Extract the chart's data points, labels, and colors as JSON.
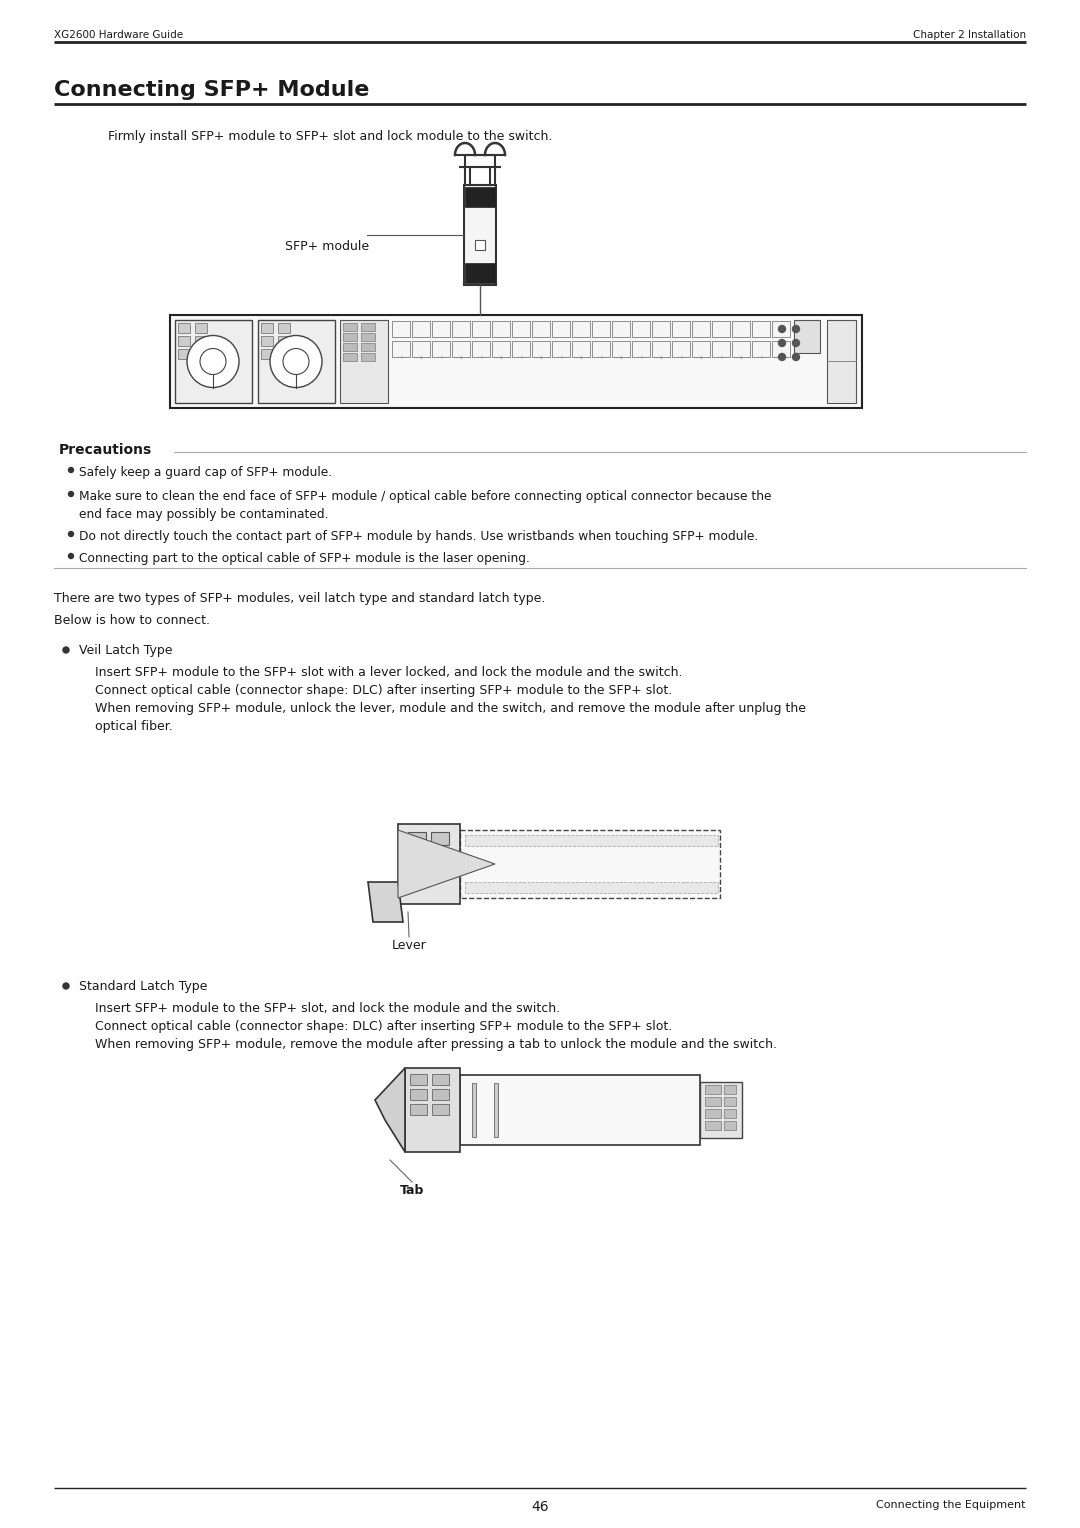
{
  "page_title": "Connecting SFP+ Module",
  "header_left": "XG2600 Hardware Guide",
  "header_right": "Chapter 2 Installation",
  "footer_center": "46",
  "footer_right": "Connecting the Equipment",
  "intro_text": "Firmly install SFP+ module to SFP+ slot and lock module to the switch.",
  "sfp_module_label": "SFP+ module",
  "precautions_title": "Precautions",
  "precautions_line1": "Safely keep a guard cap of SFP+ module.",
  "precautions_line2a": "Make sure to clean the end face of SFP+ module / optical cable before connecting optical connector because the",
  "precautions_line2b": "end face may possibly be contaminated.",
  "precautions_line3": "Do not directly touch the contact part of SFP+ module by hands. Use wristbands when touching SFP+ module.",
  "precautions_line4": "Connecting part to the optical cable of SFP+ module is the laser opening.",
  "types_text": "There are two types of SFP+ modules, veil latch type and standard latch type.",
  "below_text": "Below is how to connect.",
  "veil_latch_title": "Veil Latch Type",
  "veil_line1": "Insert SFP+ module to the SFP+ slot with a lever locked, and lock the module and the switch.",
  "veil_line2": "Connect optical cable (connector shape: DLC) after inserting SFP+ module to the SFP+ slot.",
  "veil_line3a": "When removing SFP+ module, unlock the lever, module and the switch, and remove the module after unplug the",
  "veil_line3b": "optical fiber.",
  "lever_label": "Lever",
  "standard_latch_title": "Standard Latch Type",
  "std_line1": "Insert SFP+ module to the SFP+ slot, and lock the module and the switch.",
  "std_line2": "Connect optical cable (connector shape: DLC) after inserting SFP+ module to the SFP+ slot.",
  "std_line3": "When removing SFP+ module, remove the module after pressing a tab to unlock the module and the switch.",
  "tab_label": "Tab",
  "bg_color": "#ffffff"
}
